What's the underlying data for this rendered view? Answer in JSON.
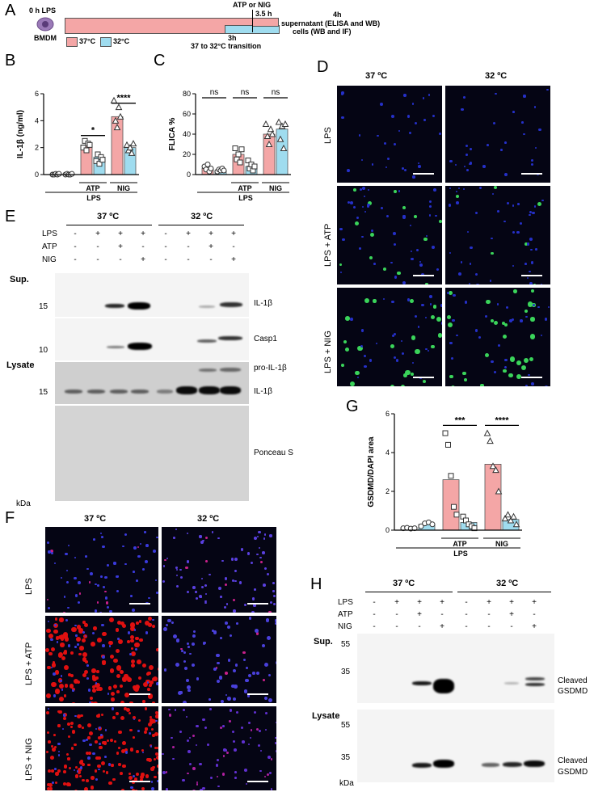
{
  "panelA": {
    "label": "A",
    "start": "0 h LPS",
    "cell": "BMDM",
    "legend37": "37°C",
    "legend32": "32°C",
    "stim": "ATP or NIG",
    "t35": "3.5 h",
    "t3": "3h",
    "transition": "37 to 32°C transition",
    "end_time": "4h",
    "end_line1": "supernatant (ELISA and WB)",
    "end_line2": "cells (WB and IF)",
    "colors": {
      "warm": "#f4a6a6",
      "cool": "#9fdcef"
    }
  },
  "panelB": {
    "label": "B",
    "ylabel": "IL-1β (ng/ml)",
    "sig1": "*",
    "sig2": "****",
    "group_atp": "ATP",
    "group_nig": "NIG",
    "group_lps": "LPS"
  },
  "panelC": {
    "label": "C",
    "ylabel": "FLICA %",
    "sig": [
      "ns",
      "ns",
      "ns"
    ],
    "group_atp": "ATP",
    "group_nig": "NIG",
    "group_lps": "LPS"
  },
  "panelD": {
    "label": "D",
    "col1": "37 ºC",
    "col2": "32 ºC",
    "rows": [
      "LPS",
      "LPS + ATP",
      "LPS + NIG"
    ]
  },
  "panelE": {
    "label": "E",
    "col1": "37 ºC",
    "col2": "32 ºC",
    "rowlabels": [
      "LPS",
      "ATP",
      "NIG"
    ],
    "signs37": [
      [
        "-",
        "+",
        "+",
        "+"
      ],
      [
        "-",
        "-",
        "+",
        "-"
      ],
      [
        "-",
        "-",
        "-",
        "+"
      ]
    ],
    "signs32": [
      [
        "-",
        "+",
        "+",
        "+"
      ],
      [
        "-",
        "-",
        "+",
        "-"
      ],
      [
        "-",
        "-",
        "-",
        "+"
      ]
    ],
    "sup": "Sup.",
    "lysate": "Lysate",
    "kda": "kDa",
    "mw15a": "15",
    "mw10": "10",
    "mw15b": "15",
    "bands": [
      "IL-1β",
      "Casp1",
      "pro-IL-1β",
      "IL-1β",
      "Ponceau S"
    ]
  },
  "panelF": {
    "label": "F",
    "col1": "37 ºC",
    "col2": "32 ºC",
    "rows": [
      "LPS",
      "LPS + ATP",
      "LPS + NIG"
    ]
  },
  "panelG": {
    "label": "G",
    "ylabel": "GSDMD/DAPI area",
    "sig1": "***",
    "sig2": "****",
    "group_atp": "ATP",
    "group_nig": "NIG",
    "group_lps": "LPS"
  },
  "panelH": {
    "label": "H",
    "col1": "37 ºC",
    "col2": "32 ºC",
    "rowlabels": [
      "LPS",
      "ATP",
      "NIG"
    ],
    "signs37": [
      [
        "-",
        "+",
        "+",
        "+"
      ],
      [
        "-",
        "-",
        "+",
        "-"
      ],
      [
        "-",
        "-",
        "-",
        "+"
      ]
    ],
    "signs32": [
      [
        "-",
        "+",
        "+",
        "+"
      ],
      [
        "-",
        "-",
        "+",
        "-"
      ],
      [
        "-",
        "-",
        "-",
        "+"
      ]
    ],
    "sup": "Sup.",
    "lysate": "Lysate",
    "kda": "kDa",
    "mw55a": "55",
    "mw35a": "35",
    "mw55b": "55",
    "mw35b": "35",
    "band1a": "Cleaved",
    "band1b": "GSDMD",
    "band2a": "Cleaved",
    "band2b": "GSDMD"
  },
  "chart_data": [
    {
      "type": "bar",
      "panel": "B",
      "ylabel": "IL-1β (ng/ml)",
      "ylim": [
        0,
        6
      ],
      "yticks": [
        0,
        2,
        4,
        6
      ],
      "categories": [
        "LPS 37°C",
        "LPS 32°C",
        "LPS+ATP 37°C",
        "LPS+ATP 32°C",
        "LPS+NIG 37°C",
        "LPS+NIG 32°C"
      ],
      "values": [
        0.05,
        0.05,
        2.2,
        1.3,
        4.3,
        2.0
      ],
      "points": [
        [
          0,
          0,
          0.05,
          0,
          0.05
        ],
        [
          0,
          0.05,
          0,
          0,
          0.05
        ],
        [
          2.0,
          2.5,
          1.8,
          2.3,
          2.2
        ],
        [
          1.0,
          1.5,
          0.8,
          1.3,
          1.1
        ],
        [
          5.5,
          4.0,
          3.5,
          5.0,
          4.3
        ],
        [
          2.2,
          1.8,
          2.0,
          1.6,
          2.3
        ]
      ]
    },
    {
      "type": "bar",
      "panel": "C",
      "ylabel": "FLICA %",
      "ylim": [
        0,
        80
      ],
      "yticks": [
        0,
        20,
        40,
        60,
        80
      ],
      "categories": [
        "LPS 37°C",
        "LPS 32°C",
        "LPS+ATP 37°C",
        "LPS+ATP 32°C",
        "LPS+NIG 37°C",
        "LPS+NIG 32°C"
      ],
      "values": [
        6,
        4,
        20,
        8,
        40,
        45
      ],
      "points": [
        [
          8,
          5,
          10,
          3,
          6
        ],
        [
          3,
          5,
          4,
          6,
          4
        ],
        [
          26,
          15,
          20,
          12,
          25
        ],
        [
          14,
          6,
          10,
          4,
          8
        ],
        [
          50,
          38,
          30,
          45,
          40
        ],
        [
          52,
          35,
          48,
          26,
          50
        ]
      ]
    },
    {
      "type": "bar",
      "panel": "G",
      "ylabel": "GSDMD/DAPI area",
      "ylim": [
        0,
        6
      ],
      "yticks": [
        0,
        2,
        4,
        6
      ],
      "categories": [
        "LPS 37°C",
        "LPS 32°C",
        "LPS+ATP 37°C",
        "LPS+ATP 32°C",
        "LPS+NIG 37°C",
        "LPS+NIG 32°C"
      ],
      "values": [
        0.1,
        0.3,
        2.6,
        0.4,
        3.4,
        0.55
      ],
      "points": [
        [
          0.1,
          0.12,
          0.08,
          0.1
        ],
        [
          0.2,
          0.35,
          0.4,
          0.3
        ],
        [
          5.0,
          4.4,
          2.8,
          1.2,
          0.8
        ],
        [
          0.7,
          0.5,
          0.3,
          0.2,
          0.1
        ],
        [
          5.0,
          4.6,
          3.3,
          3.1,
          2.0
        ],
        [
          0.6,
          0.8,
          0.5,
          0.7,
          0.3
        ]
      ]
    }
  ]
}
